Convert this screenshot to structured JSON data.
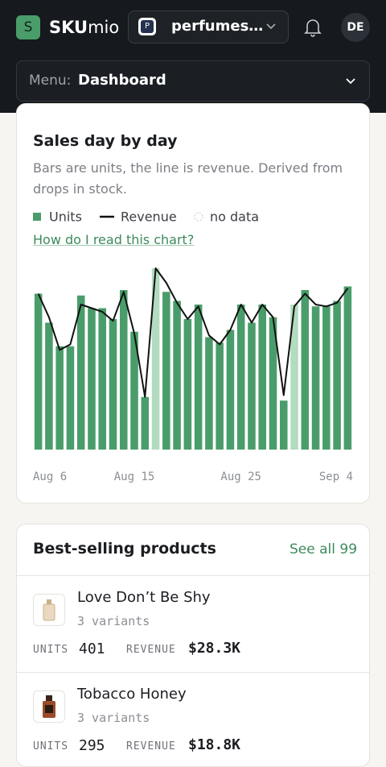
{
  "header": {
    "logo_letter": "S",
    "brand_bold": "SKU",
    "brand_rest": "mio",
    "store_badge": "P",
    "store_name": "perfumes…",
    "avatar": "DE",
    "menu_label": "Menu:",
    "menu_value": "Dashboard"
  },
  "chart_data": {
    "type": "bar",
    "title": "Sales day by day",
    "subtitle": "Bars are units, the line is revenue. Derived from drops in stock.",
    "help_link": "How do I read this chart?",
    "categories": [
      "Aug 6",
      null,
      null,
      null,
      null,
      null,
      null,
      null,
      null,
      "Aug 15",
      null,
      null,
      null,
      null,
      null,
      null,
      null,
      null,
      null,
      "Aug 25",
      null,
      null,
      null,
      null,
      null,
      null,
      null,
      null,
      null,
      "Sep 4"
    ],
    "series": [
      {
        "name": "Units",
        "type": "bar",
        "color": "#4a9d6a",
        "values": [
          86,
          70,
          57,
          57,
          85,
          78,
          78,
          72,
          88,
          65,
          29,
          100,
          87,
          82,
          72,
          80,
          62,
          59,
          66,
          80,
          70,
          80,
          73,
          27,
          80,
          88,
          79,
          79,
          82,
          90
        ]
      },
      {
        "name": "Revenue",
        "type": "line",
        "axis": "y2",
        "color": "#111111",
        "values": [
          86,
          73,
          55,
          58,
          80,
          78,
          76,
          71,
          87,
          64,
          29,
          100,
          92,
          81,
          72,
          79,
          63,
          58,
          66,
          80,
          70,
          80,
          73,
          30,
          79,
          86,
          80,
          79,
          81,
          89
        ]
      }
    ],
    "no_data_label": "no data",
    "no_data_color": "#b3dbbf",
    "no_data_indices": [
      11,
      24
    ],
    "ylim": [
      0,
      100
    ],
    "y2lim": [
      0,
      100
    ]
  },
  "products": {
    "title": "Best-selling products",
    "see_all": "See all 99",
    "units_label": "UNITS",
    "revenue_label": "REVENUE",
    "items": [
      {
        "name": "Love Don’t Be Shy",
        "variants": "3 variants",
        "units": "401",
        "revenue": "$28.3K"
      },
      {
        "name": "Tobacco Honey",
        "variants": "3 variants",
        "units": "295",
        "revenue": "$18.8K"
      }
    ]
  }
}
